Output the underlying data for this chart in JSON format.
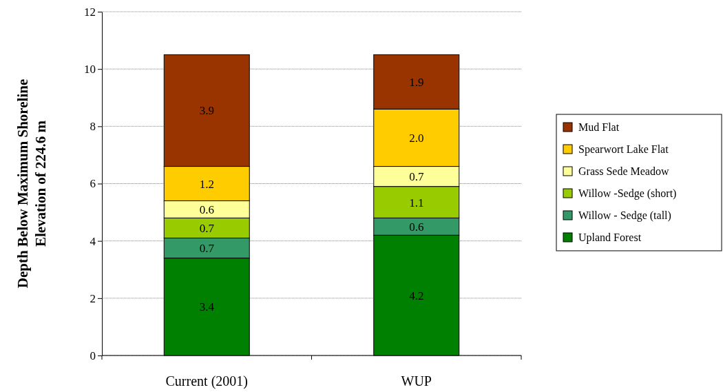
{
  "chart_data": {
    "type": "bar",
    "stacked": true,
    "ylabel": "Depth Below Maximum Shoreline\nElevation of 224.6 m",
    "categories": [
      "Current (2001)",
      "WUP"
    ],
    "series": [
      {
        "name": "Upland Forest",
        "color": "#008000",
        "values": [
          3.4,
          4.2
        ],
        "value_labels": [
          "3.4",
          "4.2"
        ]
      },
      {
        "name": "Willow - Sedge (tall)",
        "color": "#339966",
        "values": [
          0.7,
          0.6
        ],
        "value_labels": [
          "0.7",
          "0.6"
        ]
      },
      {
        "name": "Willow -Sedge (short)",
        "color": "#99cc00",
        "values": [
          0.7,
          1.1
        ],
        "value_labels": [
          "0.7",
          "1.1"
        ]
      },
      {
        "name": "Grass Sede Meadow",
        "color": "#ffff99",
        "values": [
          0.6,
          0.7
        ],
        "value_labels": [
          "0.6",
          "0.7"
        ]
      },
      {
        "name": "Spearwort Lake Flat",
        "color": "#ffcc00",
        "values": [
          1.2,
          2.0
        ],
        "value_labels": [
          "1.2",
          "2.0"
        ]
      },
      {
        "name": "Mud Flat",
        "color": "#993300",
        "values": [
          3.9,
          1.9
        ],
        "value_labels": [
          "3.9",
          "1.9"
        ]
      }
    ],
    "ylim": [
      0,
      12
    ],
    "yticks": [
      0,
      2,
      4,
      6,
      8,
      10,
      12
    ],
    "grid": "y",
    "legend": "right"
  }
}
